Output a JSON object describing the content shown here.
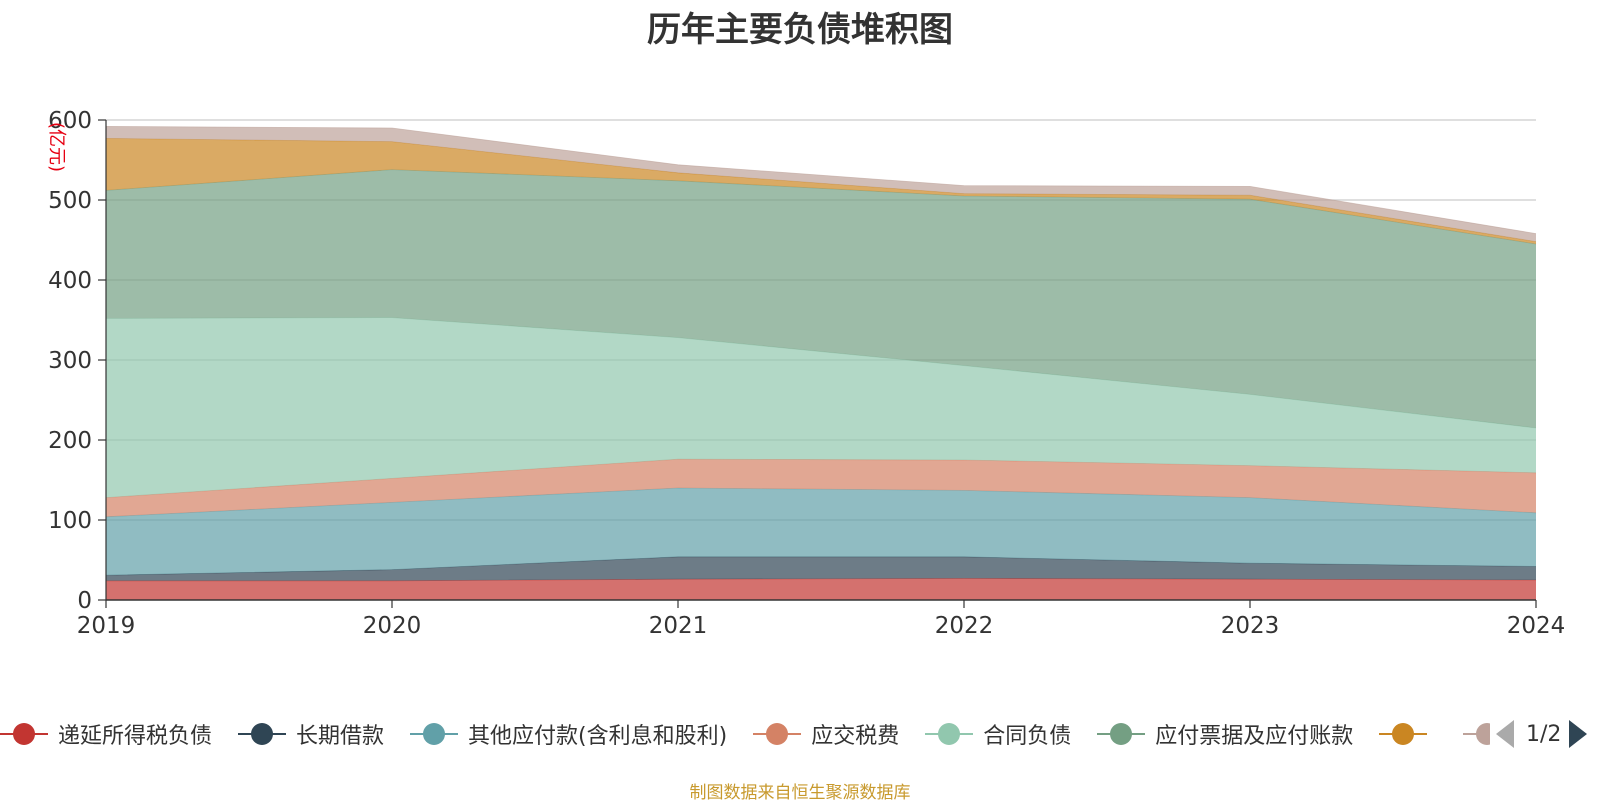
{
  "title": "历年主要负债堆积图",
  "source": "制图数据来自恒生聚源数据库",
  "legend_page": "1/2",
  "chart_data": {
    "type": "area",
    "stacked": true,
    "title": "历年主要负债堆积图",
    "ylabel": "(亿元)",
    "x": [
      "2019",
      "2020",
      "2021",
      "2022",
      "2023",
      "2024"
    ],
    "ylim": [
      0,
      600
    ],
    "yticks": [
      0,
      100,
      200,
      300,
      400,
      500,
      600
    ],
    "grid": true,
    "legend_position": "bottom",
    "series": [
      {
        "name": "递延所得税负债",
        "color": "#c23531",
        "values": [
          24,
          24,
          26,
          27,
          26,
          25
        ]
      },
      {
        "name": "长期借款",
        "color": "#2f4554",
        "values": [
          7,
          14,
          28,
          27,
          20,
          17
        ]
      },
      {
        "name": "其他应付款(含利息和股利)",
        "color": "#61a0a8",
        "values": [
          73,
          84,
          86,
          83,
          82,
          67
        ]
      },
      {
        "name": "应交税费",
        "color": "#d48265",
        "values": [
          24,
          30,
          36,
          38,
          40,
          50
        ]
      },
      {
        "name": "合同负债",
        "color": "#91c7ae",
        "values": [
          224,
          201,
          152,
          118,
          89,
          56
        ]
      },
      {
        "name": "应付票据及应付账款",
        "color": "#749f83",
        "values": [
          160,
          185,
          196,
          212,
          244,
          230
        ]
      },
      {
        "name": "",
        "color": "#ca8622",
        "values": [
          65,
          35,
          10,
          3,
          5,
          3
        ]
      },
      {
        "name": "",
        "color": "#bda29a",
        "values": [
          15,
          17,
          10,
          10,
          11,
          10
        ]
      }
    ]
  }
}
